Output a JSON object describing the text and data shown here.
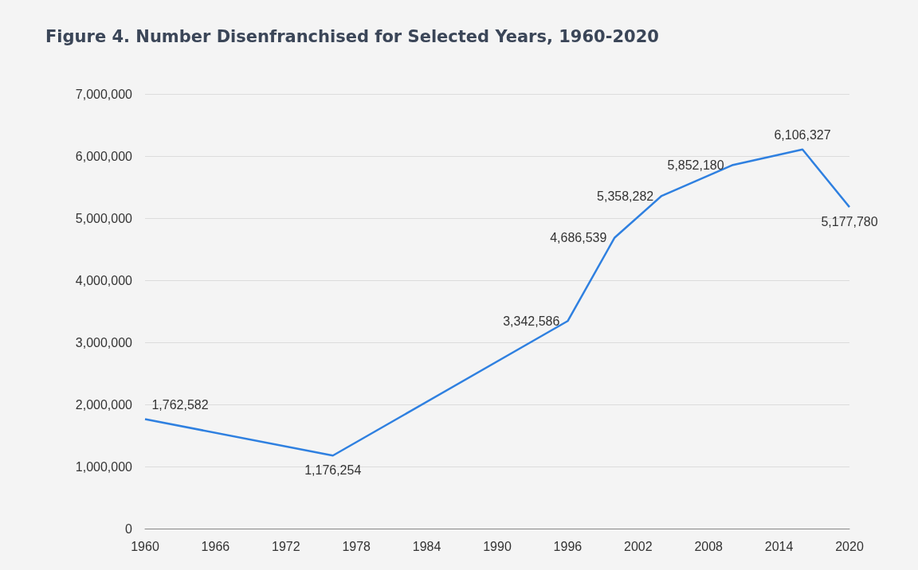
{
  "chart_data": {
    "type": "line",
    "title": "Figure 4. Number Disenfranchised for Selected Years, 1960-2020",
    "x": [
      1960,
      1976,
      1996,
      2000,
      2004,
      2010,
      2016,
      2020
    ],
    "series": [
      {
        "color": "#2f80e0",
        "values": [
          1762582,
          1176254,
          3342586,
          4686539,
          5358282,
          5852180,
          6106327,
          5177780
        ],
        "value_labels": [
          "1,762,582",
          "1,176,254",
          "3,342,586",
          "4,686,539",
          "5,358,282",
          "5,852,180",
          "6,106,327",
          "5,177,780"
        ]
      }
    ],
    "xlim": [
      1960,
      2020
    ],
    "xticks": [
      1960,
      1966,
      1972,
      1978,
      1984,
      1990,
      1996,
      2002,
      2008,
      2014,
      2020
    ],
    "ylim": [
      0,
      7000000
    ],
    "yticks": [
      {
        "value": 0,
        "label": "0"
      },
      {
        "value": 1000000,
        "label": "1,000,000"
      },
      {
        "value": 2000000,
        "label": "2,000,000"
      },
      {
        "value": 3000000,
        "label": "3,000,000"
      },
      {
        "value": 4000000,
        "label": "4,000,000"
      },
      {
        "value": 5000000,
        "label": "5,000,000"
      },
      {
        "value": 6000000,
        "label": "6,000,000"
      },
      {
        "value": 7000000,
        "label": "7,000,000"
      }
    ],
    "grid": "y",
    "marker": "none",
    "line_style": "solid"
  }
}
